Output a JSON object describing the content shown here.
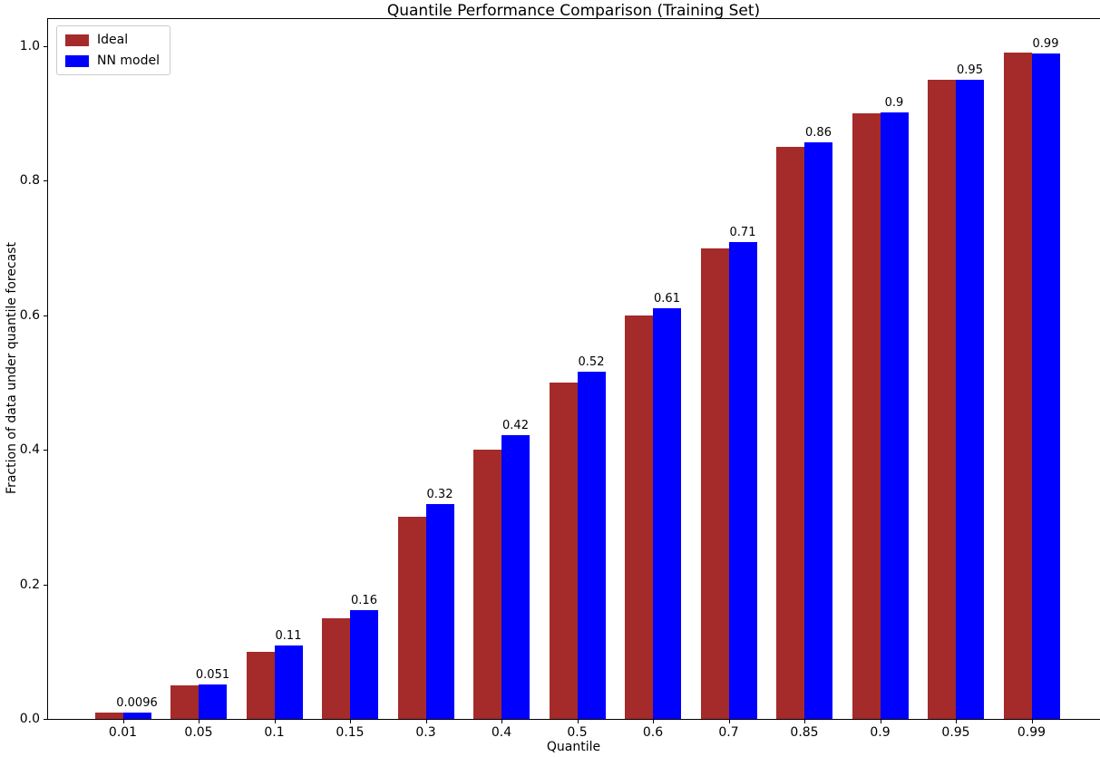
{
  "chart_data": {
    "type": "bar",
    "title": "Quantile Performance Comparison (Training Set)",
    "xlabel": "Quantile",
    "ylabel": "Fraction of data under quantile forecast",
    "categories": [
      "0.01",
      "0.05",
      "0.1",
      "0.15",
      "0.3",
      "0.4",
      "0.5",
      "0.6",
      "0.7",
      "0.85",
      "0.9",
      "0.95",
      "0.99"
    ],
    "series": [
      {
        "name": "Ideal",
        "color": "#A52A2A",
        "values": [
          0.01,
          0.05,
          0.1,
          0.15,
          0.3,
          0.4,
          0.5,
          0.6,
          0.7,
          0.85,
          0.9,
          0.95,
          0.99
        ]
      },
      {
        "name": "NN model",
        "color": "#0000FF",
        "values": [
          0.0096,
          0.051,
          0.109,
          0.162,
          0.319,
          0.422,
          0.516,
          0.611,
          0.709,
          0.857,
          0.902,
          0.95,
          0.989
        ],
        "bar_labels": [
          "0.0096",
          "0.051",
          "0.11",
          "0.16",
          "0.32",
          "0.42",
          "0.52",
          "0.61",
          "0.71",
          "0.86",
          "0.9",
          "0.95",
          "0.99"
        ]
      }
    ],
    "y_ticks": [
      {
        "value": 0.0,
        "label": "0.0"
      },
      {
        "value": 0.2,
        "label": "0.2"
      },
      {
        "value": 0.4,
        "label": "0.4"
      },
      {
        "value": 0.6,
        "label": "0.6"
      },
      {
        "value": 0.8,
        "label": "0.8"
      },
      {
        "value": 1.0,
        "label": "1.0"
      }
    ],
    "ylim": [
      0,
      1.0404
    ],
    "grid": false,
    "legend_position": "upper left",
    "background": "#ffffff"
  }
}
